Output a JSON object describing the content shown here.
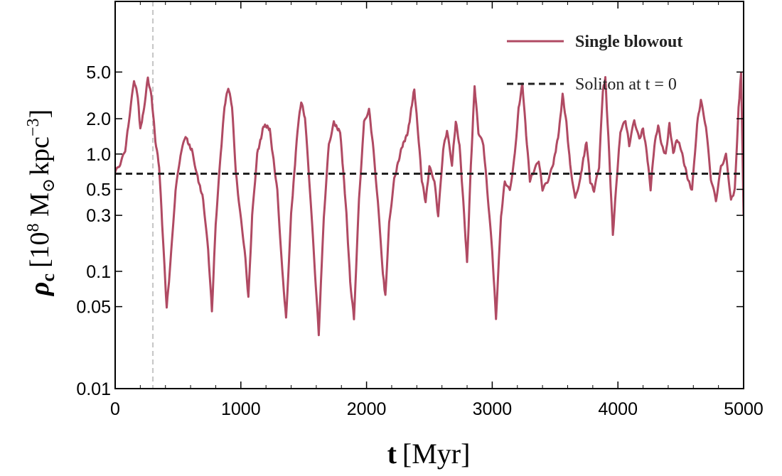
{
  "chart_data": {
    "type": "line",
    "title": "",
    "xlabel": "t [Myr]",
    "ylabel": "ρc [10^8 M⊙ kpc^-3]",
    "xlabel_parts": {
      "symbol": "t",
      "unit": "[Myr]"
    },
    "ylabel_parts": {
      "symbol": "ρ",
      "subscript": "c",
      "unit_open": "[10",
      "unit_exp": "8",
      "unit_mid": " M",
      "unit_sun": "⊙",
      "unit_kpc": "kpc",
      "unit_exp2": "−3",
      "unit_close": "]"
    },
    "xlim": [
      0,
      5000
    ],
    "ylim": [
      0.01,
      20
    ],
    "yscale": "log",
    "x_ticks": [
      0,
      1000,
      2000,
      3000,
      4000,
      5000
    ],
    "x_tick_labels": [
      "0",
      "1000",
      "2000",
      "3000",
      "4000",
      "5000"
    ],
    "y_ticks": [
      0.01,
      0.05,
      0.1,
      0.3,
      0.5,
      1.0,
      2.0,
      5.0
    ],
    "y_tick_labels": [
      "0.01",
      "0.05",
      "0.1",
      "0.3",
      "0.5",
      "1.0",
      "2.0",
      "5.0"
    ],
    "vline_x": 300,
    "legend_position": "top-right",
    "series": [
      {
        "name": "Single blowout",
        "style": "solid",
        "color": "#b04a63",
        "bold_label": true,
        "points": [
          [
            0,
            0.7
          ],
          [
            40,
            0.85
          ],
          [
            80,
            1.1
          ],
          [
            110,
            2.0
          ],
          [
            150,
            4.3
          ],
          [
            180,
            3.2
          ],
          [
            200,
            1.6
          ],
          [
            225,
            2.2
          ],
          [
            260,
            4.3
          ],
          [
            290,
            3.0
          ],
          [
            320,
            1.3
          ],
          [
            350,
            0.8
          ],
          [
            380,
            0.2
          ],
          [
            410,
            0.05
          ],
          [
            440,
            0.12
          ],
          [
            480,
            0.5
          ],
          [
            520,
            1.0
          ],
          [
            560,
            1.4
          ],
          [
            610,
            1.1
          ],
          [
            650,
            0.7
          ],
          [
            700,
            0.4
          ],
          [
            740,
            0.15
          ],
          [
            770,
            0.045
          ],
          [
            800,
            0.25
          ],
          [
            840,
            1.0
          ],
          [
            870,
            2.5
          ],
          [
            900,
            3.6
          ],
          [
            930,
            2.5
          ],
          [
            960,
            0.7
          ],
          [
            990,
            0.35
          ],
          [
            1030,
            0.15
          ],
          [
            1060,
            0.06
          ],
          [
            1090,
            0.3
          ],
          [
            1130,
            1.0
          ],
          [
            1180,
            1.75
          ],
          [
            1230,
            1.6
          ],
          [
            1290,
            0.5
          ],
          [
            1330,
            0.1
          ],
          [
            1360,
            0.04
          ],
          [
            1400,
            0.3
          ],
          [
            1450,
            1.6
          ],
          [
            1480,
            2.8
          ],
          [
            1510,
            2.0
          ],
          [
            1550,
            0.5
          ],
          [
            1590,
            0.1
          ],
          [
            1620,
            0.03
          ],
          [
            1660,
            0.3
          ],
          [
            1700,
            1.2
          ],
          [
            1740,
            1.8
          ],
          [
            1790,
            1.6
          ],
          [
            1840,
            0.3
          ],
          [
            1870,
            0.08
          ],
          [
            1900,
            0.04
          ],
          [
            1940,
            0.4
          ],
          [
            1980,
            1.8
          ],
          [
            2020,
            2.4
          ],
          [
            2050,
            1.2
          ],
          [
            2090,
            0.4
          ],
          [
            2130,
            0.1
          ],
          [
            2150,
            0.06
          ],
          [
            2180,
            0.25
          ],
          [
            2220,
            0.6
          ],
          [
            2280,
            1.1
          ],
          [
            2330,
            1.6
          ],
          [
            2380,
            3.5
          ],
          [
            2410,
            1.5
          ],
          [
            2440,
            0.6
          ],
          [
            2470,
            0.4
          ],
          [
            2500,
            0.8
          ],
          [
            2540,
            0.6
          ],
          [
            2570,
            0.3
          ],
          [
            2610,
            1.1
          ],
          [
            2640,
            1.6
          ],
          [
            2680,
            0.8
          ],
          [
            2710,
            1.9
          ],
          [
            2740,
            1.2
          ],
          [
            2770,
            0.4
          ],
          [
            2800,
            0.12
          ],
          [
            2830,
            0.8
          ],
          [
            2860,
            3.8
          ],
          [
            2890,
            1.5
          ],
          [
            2930,
            1.2
          ],
          [
            2960,
            0.5
          ],
          [
            3000,
            0.15
          ],
          [
            3030,
            0.04
          ],
          [
            3070,
            0.3
          ],
          [
            3100,
            0.6
          ],
          [
            3140,
            0.5
          ],
          [
            3180,
            1.0
          ],
          [
            3210,
            2.5
          ],
          [
            3240,
            4.1
          ],
          [
            3270,
            1.5
          ],
          [
            3300,
            0.6
          ],
          [
            3330,
            0.7
          ],
          [
            3370,
            0.9
          ],
          [
            3400,
            0.5
          ],
          [
            3440,
            0.6
          ],
          [
            3480,
            0.8
          ],
          [
            3530,
            1.5
          ],
          [
            3560,
            3.1
          ],
          [
            3590,
            1.8
          ],
          [
            3620,
            0.8
          ],
          [
            3660,
            0.4
          ],
          [
            3700,
            0.6
          ],
          [
            3750,
            1.3
          ],
          [
            3780,
            0.6
          ],
          [
            3810,
            0.5
          ],
          [
            3850,
            0.8
          ],
          [
            3880,
            3.6
          ],
          [
            3900,
            4.3
          ],
          [
            3930,
            1.0
          ],
          [
            3960,
            0.2
          ],
          [
            3990,
            0.6
          ],
          [
            4020,
            1.6
          ],
          [
            4060,
            1.9
          ],
          [
            4090,
            1.2
          ],
          [
            4130,
            1.9
          ],
          [
            4170,
            1.3
          ],
          [
            4200,
            1.6
          ],
          [
            4230,
            1.0
          ],
          [
            4260,
            0.5
          ],
          [
            4290,
            1.2
          ],
          [
            4320,
            1.8
          ],
          [
            4350,
            1.2
          ],
          [
            4380,
            1.0
          ],
          [
            4410,
            1.8
          ],
          [
            4440,
            1.0
          ],
          [
            4470,
            1.3
          ],
          [
            4500,
            1.1
          ],
          [
            4530,
            0.8
          ],
          [
            4560,
            0.6
          ],
          [
            4590,
            0.5
          ],
          [
            4630,
            1.8
          ],
          [
            4660,
            2.9
          ],
          [
            4700,
            1.7
          ],
          [
            4740,
            0.6
          ],
          [
            4780,
            0.4
          ],
          [
            4820,
            0.8
          ],
          [
            4860,
            1.0
          ],
          [
            4900,
            0.4
          ],
          [
            4930,
            0.5
          ],
          [
            4960,
            2.5
          ],
          [
            4980,
            5.0
          ],
          [
            5000,
            0.3
          ]
        ]
      },
      {
        "name": "Soliton at t = 0",
        "style": "dashed",
        "color": "#222222",
        "bold_label": false,
        "points": [
          [
            0,
            0.68
          ],
          [
            5000,
            0.68
          ]
        ]
      }
    ]
  }
}
